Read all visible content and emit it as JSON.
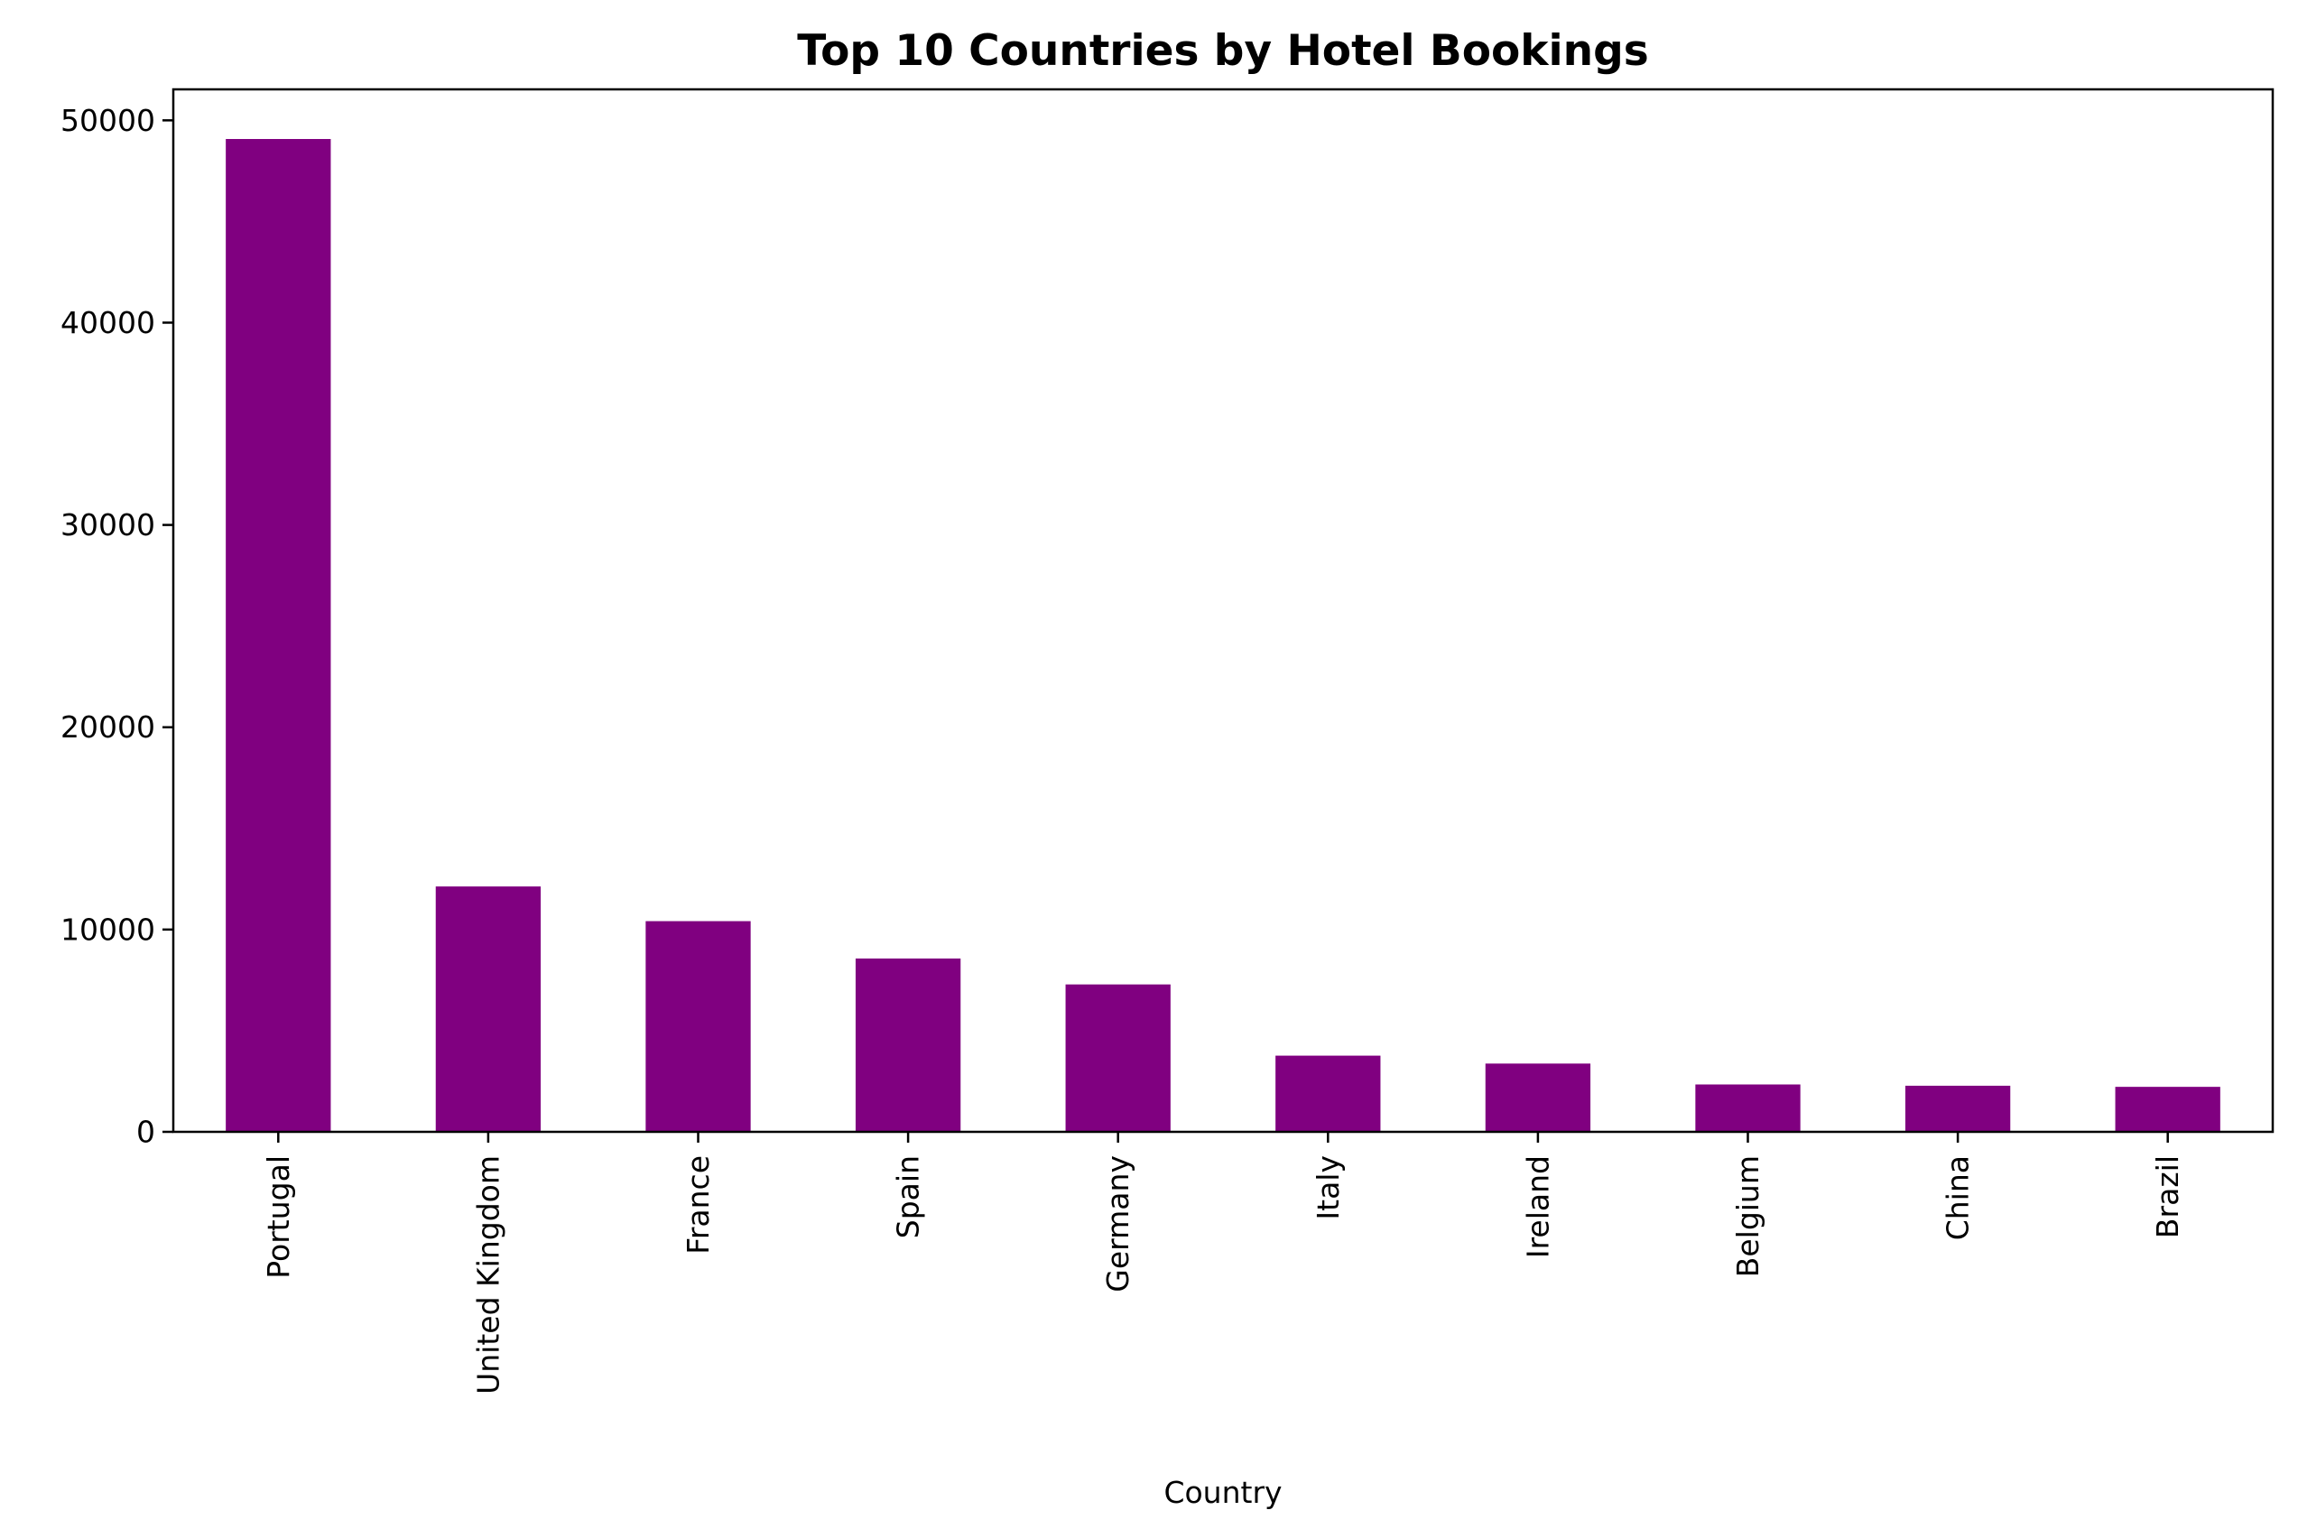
{
  "chart_data": {
    "type": "bar",
    "title": "Top 10 Countries by Hotel Bookings",
    "xlabel": "Country",
    "ylabel": "",
    "categories": [
      "Portugal",
      "United Kingdom",
      "France",
      "Spain",
      "Germany",
      "Italy",
      "Ireland",
      "Belgium",
      "China",
      "Brazil"
    ],
    "values": [
      49078,
      12129,
      10415,
      8568,
      7287,
      3766,
      3375,
      2342,
      2279,
      2224
    ],
    "ylim": [
      0,
      51532
    ],
    "yticks": [
      0,
      10000,
      20000,
      30000,
      40000,
      50000
    ],
    "ytick_labels": [
      "0",
      "10000",
      "20000",
      "30000",
      "40000",
      "50000"
    ],
    "grid": false,
    "legend": "none",
    "bar_color": "#800080"
  }
}
